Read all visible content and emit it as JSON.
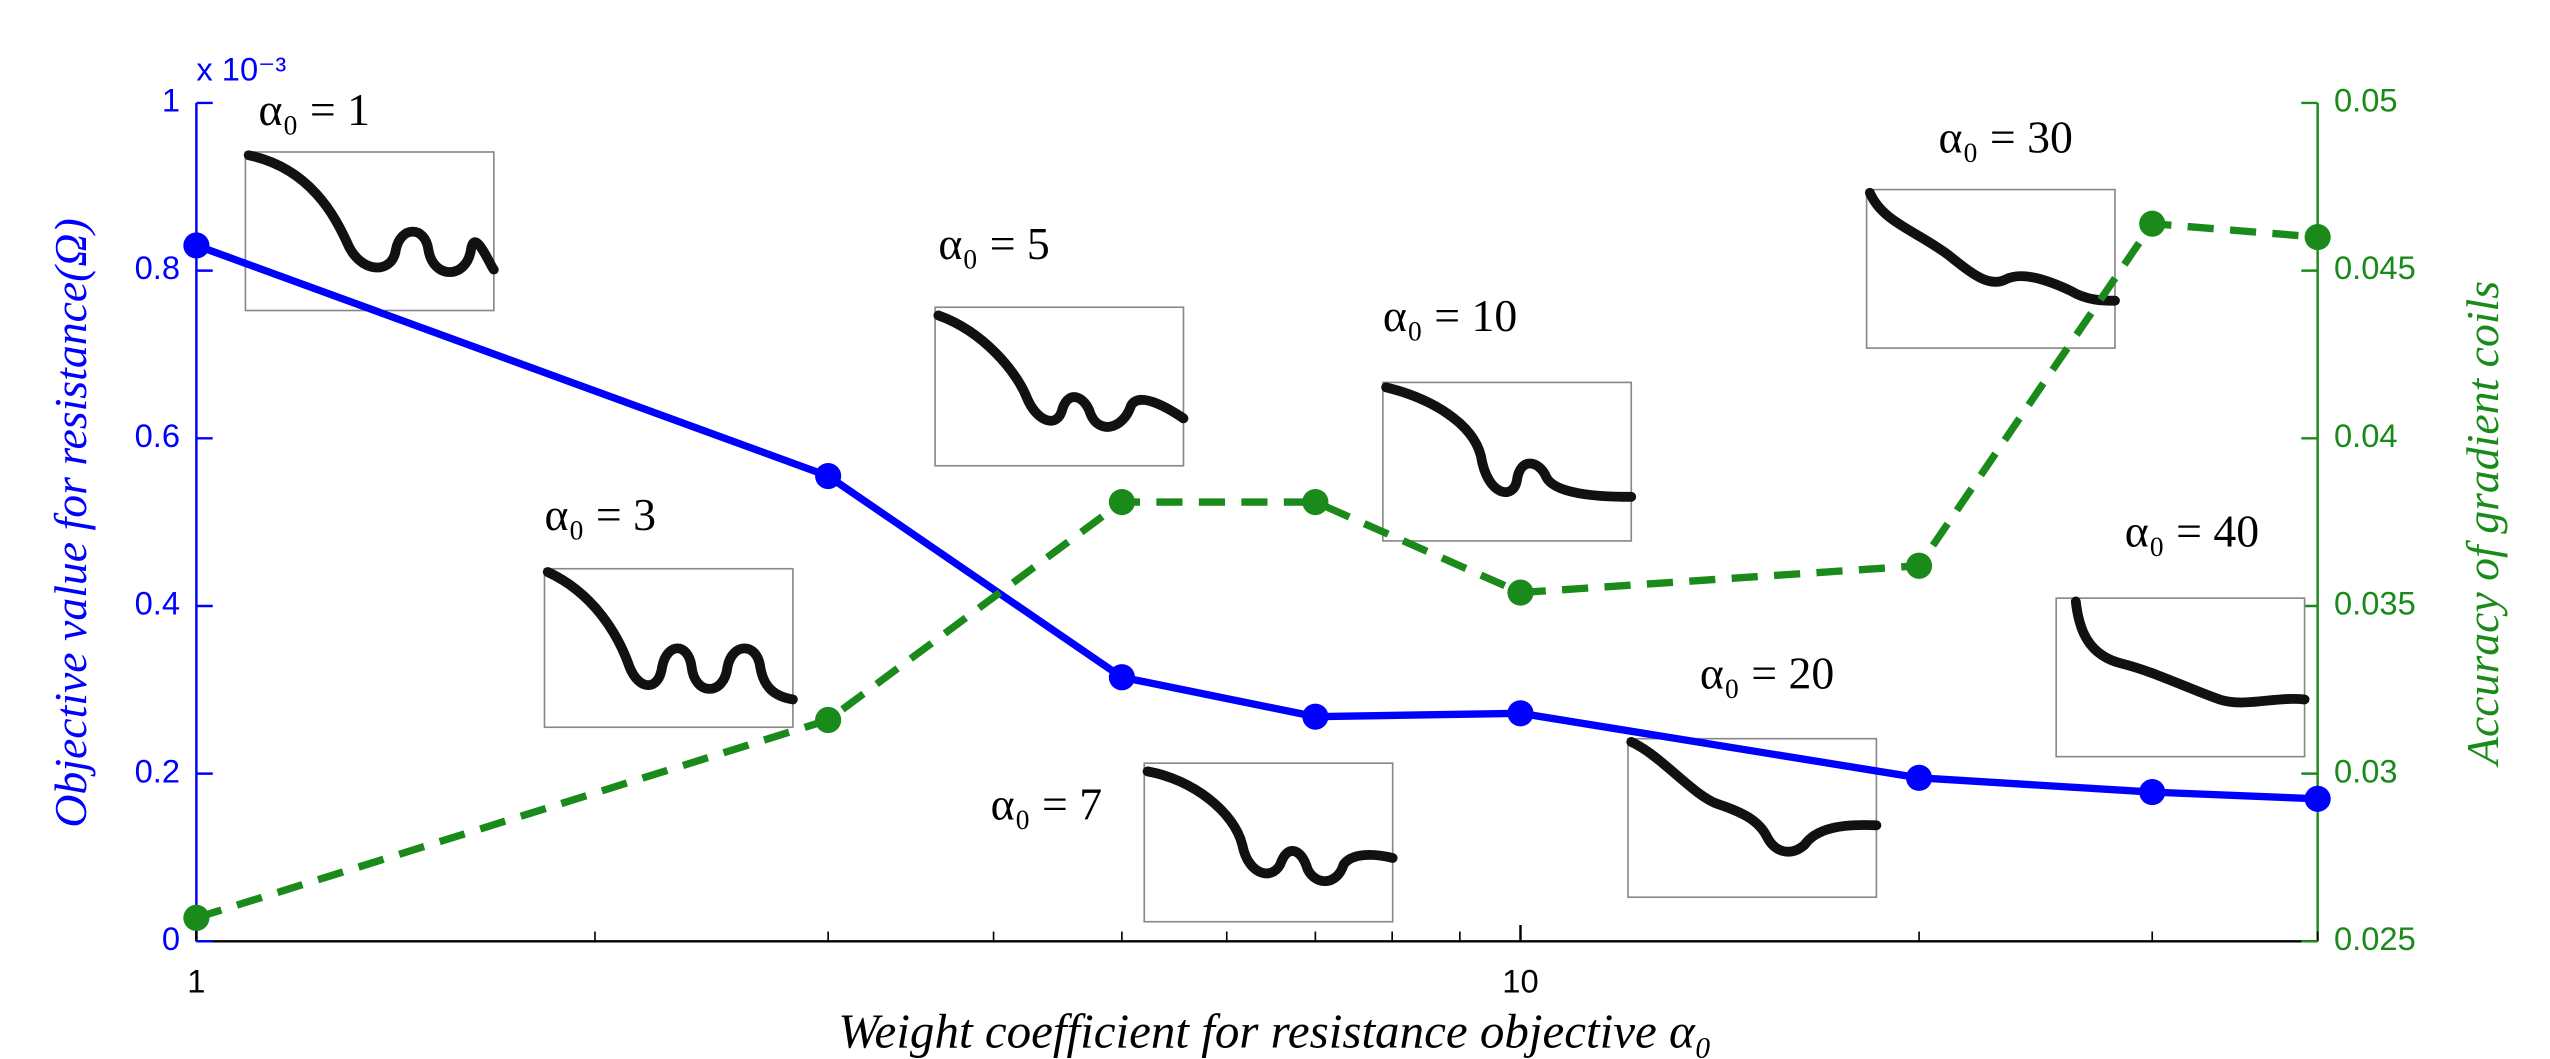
{
  "chart_data": {
    "type": "line",
    "x": [
      1,
      3,
      5,
      7,
      10,
      20,
      30,
      40
    ],
    "xlabel": "Weight coefficient for resistance objective α₀",
    "ylabel": "Objective value for resistance(Ω)",
    "y2label": "Accuracy of gradient coils",
    "y_multiplier": "x 10⁻³",
    "xscale": "log",
    "xlim": [
      1,
      40
    ],
    "xticks": [
      1,
      10
    ],
    "xminorticks": [
      2,
      3,
      4,
      5,
      6,
      7,
      8,
      9,
      20,
      30,
      40
    ],
    "ylim": [
      0,
      1
    ],
    "yticks": [
      0,
      0.2,
      0.4,
      0.6,
      0.8,
      1
    ],
    "y2lim": [
      0.025,
      0.05
    ],
    "y2ticks": [
      0.025,
      0.03,
      0.035,
      0.04,
      0.045,
      0.05
    ],
    "series": [
      {
        "color": "#0000ff",
        "linestyle": "solid",
        "values": [
          0.83,
          0.555,
          0.315,
          0.268,
          0.272,
          0.195,
          0.178,
          0.17
        ]
      },
      {
        "color": "#1a8a1a",
        "linestyle": "dashed",
        "axis": "y2",
        "values": [
          0.0257,
          0.0316,
          0.0381,
          0.0381,
          0.0354,
          0.0362,
          0.0464,
          0.046
        ]
      }
    ],
    "annotations": [
      "α₀ = 1",
      "α₀ = 3",
      "α₀ = 5",
      "α₀ = 7",
      "α₀ = 10",
      "α₀ = 20",
      "α₀ = 30",
      "α₀ = 40"
    ]
  }
}
